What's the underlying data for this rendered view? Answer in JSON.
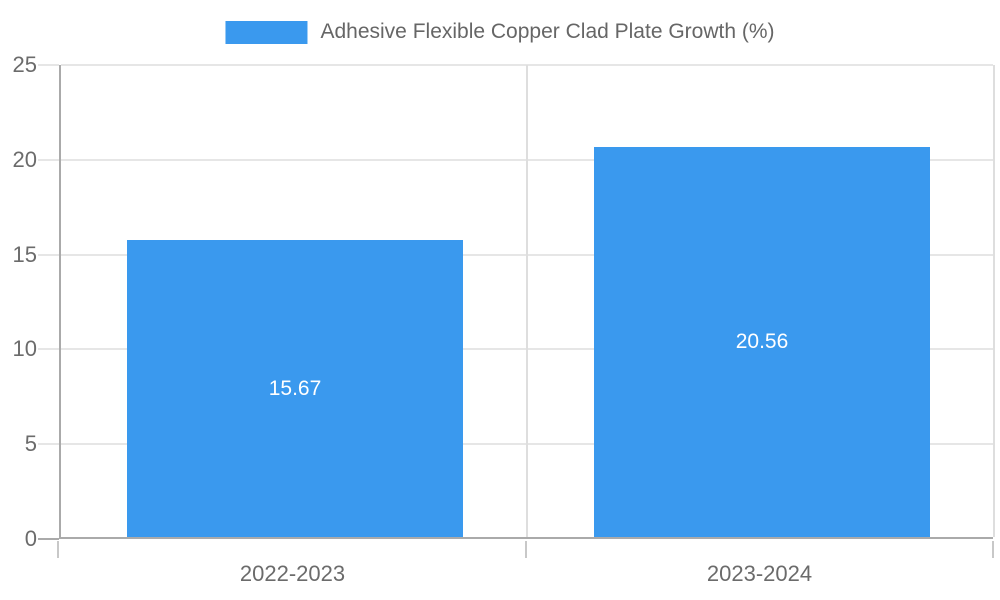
{
  "legend": {
    "label": "Adhesive Flexible Copper Clad Plate Growth (%)"
  },
  "chart_data": {
    "type": "bar",
    "title": "Adhesive Flexible Copper Clad Plate Growth (%)",
    "categories": [
      "2022-2023",
      "2023-2024"
    ],
    "values": [
      15.67,
      20.56
    ],
    "value_labels": [
      "15.67",
      "20.56"
    ],
    "ylabel": "",
    "xlabel": "",
    "ylim": [
      0,
      25
    ],
    "yticks": [
      0,
      5,
      10,
      15,
      20,
      25
    ],
    "grid": true,
    "legend_position": "top-center",
    "value_label_position": "inside-center"
  },
  "colors": {
    "bar": "#3a99ee",
    "bar_label": "#ffffff",
    "axis_line": "#aaaaaa",
    "grid_line": "#e6e6e6",
    "grid_line_vertical": "#dedede",
    "tick_line": "#c8c8c8",
    "axis_label": "#6b6b6b",
    "legend_text": "#666666",
    "background": "#ffffff"
  }
}
